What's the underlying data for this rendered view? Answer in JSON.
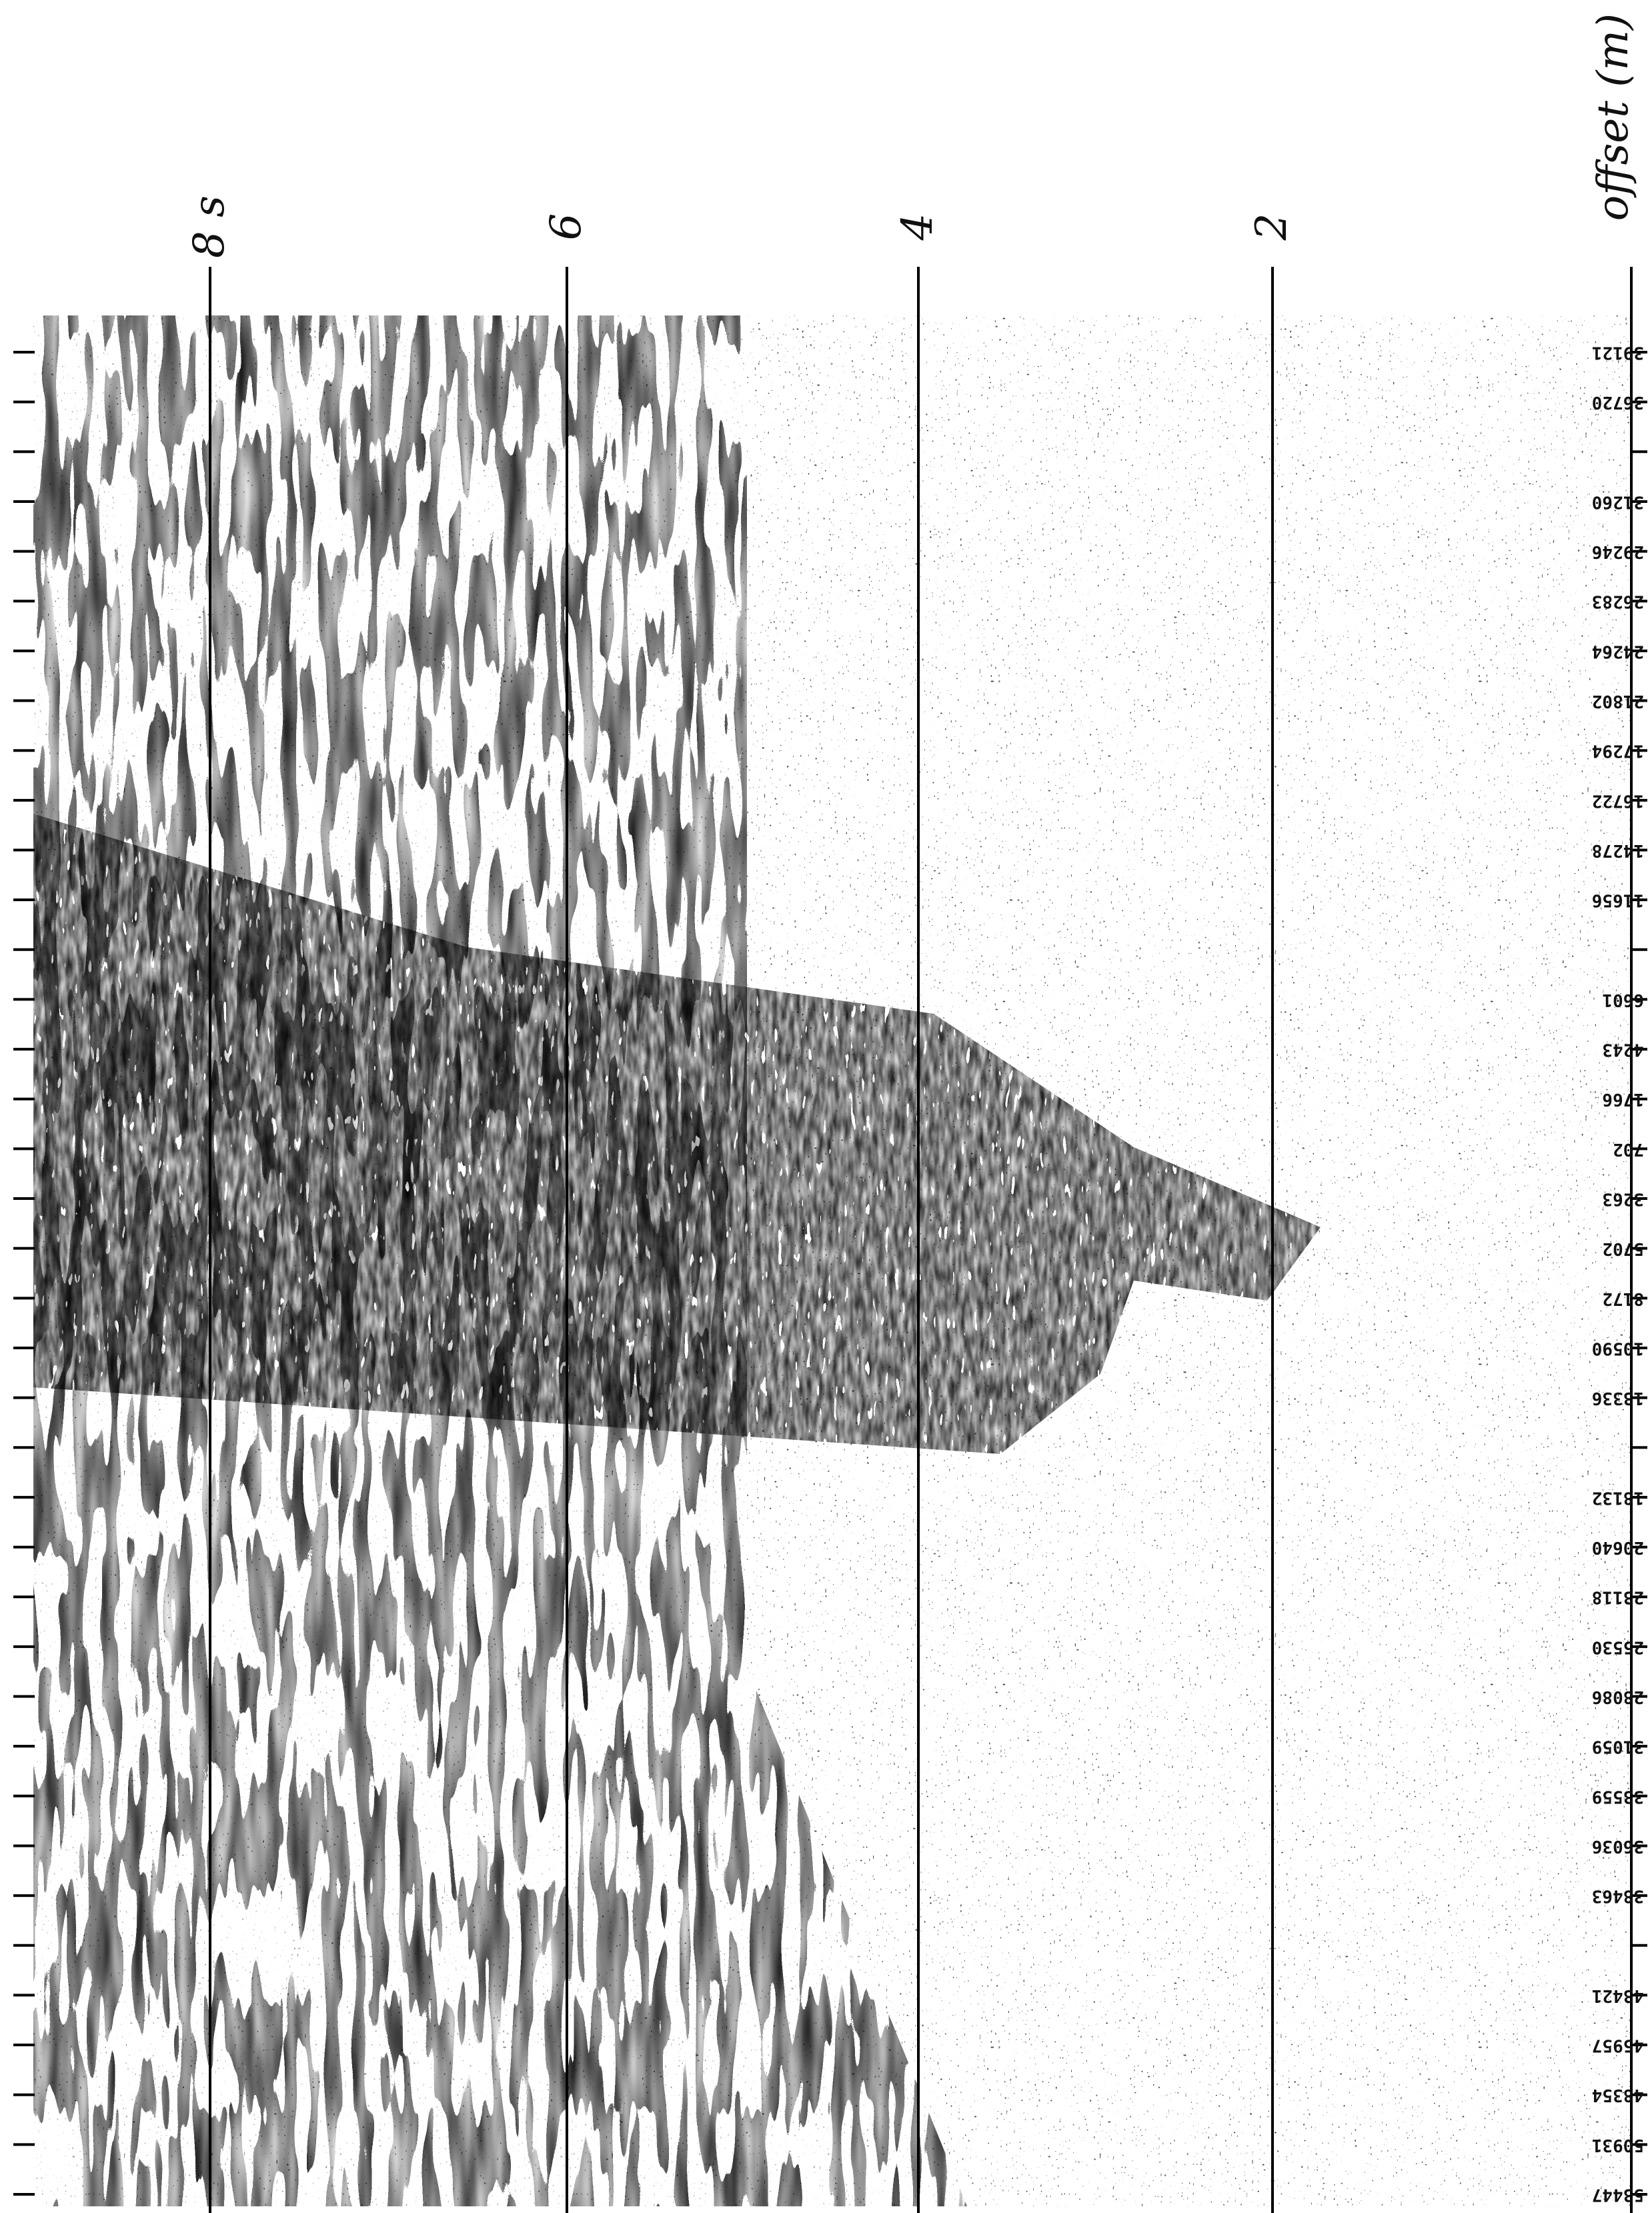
{
  "offset_label": "offset (m)",
  "time_labels": [
    "8 s",
    "6",
    "4",
    "2"
  ],
  "trace_offsets": [
    "39121",
    "36720",
    null,
    "31260",
    "29246",
    "26283",
    "24264",
    "21802",
    "17294",
    "16722",
    "14278",
    "11656",
    null,
    "6601",
    "4243",
    "1766",
    "702",
    "3263",
    "5702",
    "8172",
    "10590",
    "13336",
    null,
    "18132",
    "20640",
    "23118",
    "25530",
    "28086",
    "31059",
    "33559",
    "36036",
    "38463",
    null,
    "43421",
    "45957",
    "48354",
    "50931",
    "53447"
  ]
}
